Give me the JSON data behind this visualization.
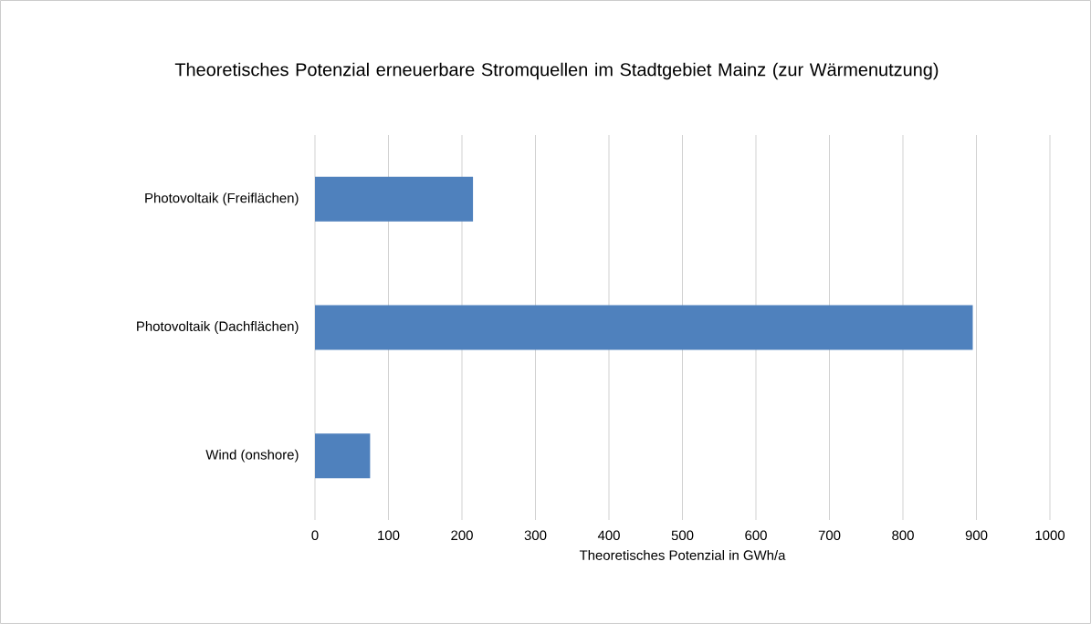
{
  "chart_data": {
    "type": "bar",
    "orientation": "horizontal",
    "title": "Theoretisches Potenzial erneuerbare Stromquellen im Stadtgebiet Mainz (zur Wärmenutzung)",
    "xlabel": "Theoretisches Potenzial in GWh/a",
    "categories": [
      "Photovoltaik (Freiflächen)",
      "Photovoltaik (Dachflächen)",
      "Wind (onshore)"
    ],
    "values": [
      215,
      895,
      75
    ],
    "color": "#4f81bd",
    "xlim": [
      0,
      1000
    ],
    "xticks": [
      0,
      100,
      200,
      300,
      400,
      500,
      600,
      700,
      800,
      900,
      1000
    ],
    "grid": "x"
  }
}
